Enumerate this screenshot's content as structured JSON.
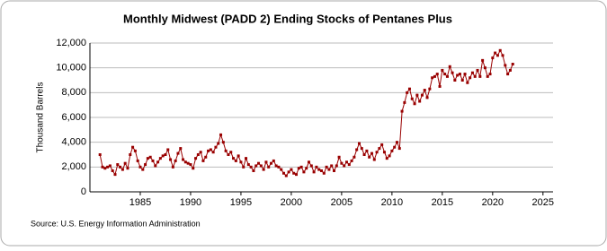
{
  "chart_data": {
    "type": "line",
    "title": "Monthly Midwest (PADD 2) Ending Stocks of Pentanes Plus",
    "y_label": "Thousand Barrels",
    "source": "Source: U.S. Energy Information Administration",
    "color": "#990000",
    "grid": true,
    "xlim": [
      1980,
      2026
    ],
    "ylim": [
      0,
      12000
    ],
    "xticks": [
      1985,
      1990,
      1995,
      2000,
      2005,
      2010,
      2015,
      2020,
      2025
    ],
    "yticks": [
      0,
      {
        "value": 2000,
        "label": "2,000"
      },
      {
        "value": 4000,
        "label": "4,000"
      },
      {
        "value": 6000,
        "label": "6,000"
      },
      {
        "value": 8000,
        "label": "8,000"
      },
      {
        "value": 10000,
        "label": "10,000"
      },
      {
        "value": 12000,
        "label": "12,000"
      }
    ],
    "x": [
      1981,
      1981.25,
      1981.5,
      1981.75,
      1982,
      1982.25,
      1982.5,
      1982.75,
      1983,
      1983.25,
      1983.5,
      1983.75,
      1984,
      1984.25,
      1984.5,
      1984.75,
      1985,
      1985.25,
      1985.5,
      1985.75,
      1986,
      1986.25,
      1986.5,
      1986.75,
      1987,
      1987.25,
      1987.5,
      1987.75,
      1988,
      1988.25,
      1988.5,
      1988.75,
      1989,
      1989.25,
      1989.5,
      1989.75,
      1990,
      1990.25,
      1990.5,
      1990.75,
      1991,
      1991.25,
      1991.5,
      1991.75,
      1992,
      1992.25,
      1992.5,
      1992.75,
      1993,
      1993.25,
      1993.5,
      1993.75,
      1994,
      1994.25,
      1994.5,
      1994.75,
      1995,
      1995.25,
      1995.5,
      1995.75,
      1996,
      1996.25,
      1996.5,
      1996.75,
      1997,
      1997.25,
      1997.5,
      1997.75,
      1998,
      1998.25,
      1998.5,
      1998.75,
      1999,
      1999.25,
      1999.5,
      1999.75,
      2000,
      2000.25,
      2000.5,
      2000.75,
      2001,
      2001.25,
      2001.5,
      2001.75,
      2002,
      2002.25,
      2002.5,
      2002.75,
      2003,
      2003.25,
      2003.5,
      2003.75,
      2004,
      2004.25,
      2004.5,
      2004.75,
      2005,
      2005.25,
      2005.5,
      2005.75,
      2006,
      2006.25,
      2006.5,
      2006.75,
      2007,
      2007.25,
      2007.5,
      2007.75,
      2008,
      2008.25,
      2008.5,
      2008.75,
      2009,
      2009.25,
      2009.5,
      2009.75,
      2010,
      2010.25,
      2010.5,
      2010.75,
      2011,
      2011.25,
      2011.5,
      2011.75,
      2012,
      2012.25,
      2012.5,
      2012.75,
      2013,
      2013.25,
      2013.5,
      2013.75,
      2014,
      2014.25,
      2014.5,
      2014.75,
      2015,
      2015.25,
      2015.5,
      2015.75,
      2016,
      2016.25,
      2016.5,
      2016.75,
      2017,
      2017.25,
      2017.5,
      2017.75,
      2018,
      2018.25,
      2018.5,
      2018.75,
      2019,
      2019.25,
      2019.5,
      2019.75,
      2020,
      2020.25,
      2020.5,
      2020.75,
      2021,
      2021.25,
      2021.5,
      2021.75,
      2022
    ],
    "values": [
      3000,
      2000,
      1900,
      2000,
      2100,
      1700,
      1400,
      2200,
      2000,
      1800,
      2300,
      1900,
      3000,
      3600,
      3300,
      2500,
      2000,
      1800,
      2200,
      2700,
      2800,
      2500,
      2100,
      2400,
      2700,
      2900,
      3000,
      3400,
      2600,
      2000,
      2500,
      3100,
      3500,
      2600,
      2400,
      2300,
      2200,
      1900,
      2700,
      3000,
      3200,
      2500,
      2800,
      3300,
      3400,
      3200,
      3600,
      3900,
      4600,
      4000,
      3300,
      3000,
      3200,
      2700,
      2500,
      2900,
      2400,
      2000,
      2700,
      2200,
      2000,
      1700,
      2100,
      2300,
      2100,
      1800,
      2400,
      2000,
      2300,
      2500,
      2100,
      2000,
      1800,
      1500,
      1300,
      1600,
      1800,
      1500,
      1400,
      1900,
      2000,
      1600,
      1900,
      2400,
      2100,
      1600,
      2000,
      1800,
      1700,
      1500,
      2000,
      1800,
      2100,
      1700,
      2100,
      2800,
      2300,
      2100,
      2400,
      2200,
      2500,
      2800,
      3400,
      3900,
      3500,
      3000,
      3300,
      2800,
      3100,
      2600,
      3200,
      3500,
      3800,
      3200,
      2700,
      2900,
      3300,
      3600,
      4000,
      3500,
      6500,
      7200,
      8000,
      8300,
      7500,
      7100,
      7800,
      7300,
      7800,
      8200,
      7600,
      8300,
      9200,
      9300,
      9500,
      8500,
      9800,
      9500,
      9300,
      10100,
      9600,
      9000,
      9400,
      9500,
      9000,
      9500,
      8800,
      9200,
      9600,
      9300,
      9800,
      9300,
      10600,
      10000,
      9300,
      9500,
      10800,
      11200,
      11000,
      11400,
      11000,
      10200,
      9500,
      9800,
      10300
    ]
  }
}
